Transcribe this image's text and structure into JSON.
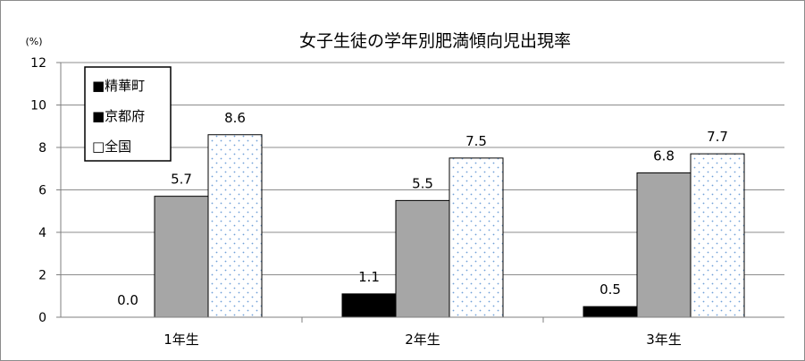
{
  "chart_data": {
    "type": "bar",
    "title": "女子生徒の学年別肥満傾向児出現率",
    "unit_label": "(%)",
    "categories": [
      "1年生",
      "2年生",
      "3年生"
    ],
    "series": [
      {
        "name": "精華町",
        "values": [
          0.0,
          1.1,
          0.5
        ],
        "legend_label": "■精華町",
        "color": "#000000",
        "pattern": "solid"
      },
      {
        "name": "京都府",
        "values": [
          5.7,
          5.5,
          6.8
        ],
        "legend_label": "■京都府",
        "color": "#a6a6a6",
        "pattern": "solid"
      },
      {
        "name": "全国",
        "values": [
          8.6,
          7.5,
          7.7
        ],
        "legend_label": "□全国",
        "color": "#ffffff",
        "pattern": "dots",
        "dot_color": "#6f9fd8"
      }
    ],
    "y_ticks": [
      "0",
      "2",
      "4",
      "6",
      "8",
      "10",
      "12"
    ],
    "data_labels": [
      [
        "0.0",
        "1.1",
        "0.5"
      ],
      [
        "5.7",
        "5.5",
        "6.8"
      ],
      [
        "8.6",
        "7.5",
        "7.7"
      ]
    ],
    "ylim": [
      0,
      12
    ],
    "ytick_step": 2,
    "grid": true,
    "legend_position": "top-left"
  }
}
